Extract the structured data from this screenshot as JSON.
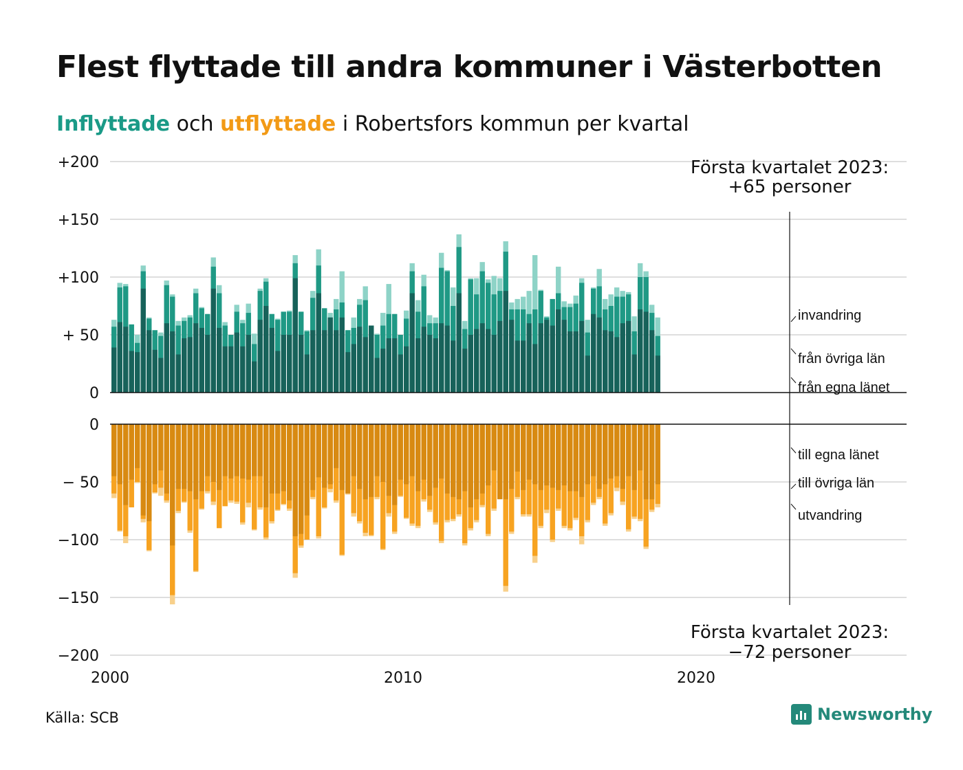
{
  "title": "Flest flyttade till andra kommuner i Västerbotten",
  "subtitle": {
    "in_word": "Inflyttade",
    "connector": "och",
    "out_word": "utflyttade",
    "rest": "i Robertsfors kommun per kvartal"
  },
  "source": "Källa: SCB",
  "brand": "Newsworthy",
  "colors": {
    "in_own": "#17625a",
    "in_other": "#1f9985",
    "in_immig": "#8ed3c7",
    "out_own": "#d88a12",
    "out_other": "#f7a321",
    "out_emig": "#f8d08b"
  },
  "chart_data": {
    "type": "bar",
    "x_ticks": [
      "2000",
      "2010",
      "2020"
    ],
    "upper_y_ticks": [
      "+200",
      "+150",
      "+100",
      "+ 50",
      "0"
    ],
    "lower_y_ticks": [
      "0",
      "− 50",
      "−100",
      "−150",
      "−200"
    ],
    "upper_ylim": [
      0,
      200
    ],
    "lower_ylim": [
      -200,
      0
    ],
    "annotation_top": [
      "Första kvartalet 2023:",
      "+65 personer"
    ],
    "annotation_bottom": [
      "Första kvartalet 2023:",
      "−72 personer"
    ],
    "labels_in": [
      "invandring",
      "från övriga län",
      "från egna länet"
    ],
    "labels_out": [
      "till egna länet",
      "till övriga län",
      "utvandring"
    ],
    "series_in": [
      {
        "name": "från egna länet",
        "values": [
          39,
          61,
          57,
          36,
          35,
          90,
          54,
          37,
          30,
          60,
          53,
          33,
          47,
          48,
          60,
          56,
          50,
          90,
          56,
          40,
          40,
          52,
          40,
          50,
          27,
          63,
          75,
          56,
          36,
          50,
          50,
          99,
          50,
          33,
          54,
          86,
          54,
          65,
          54,
          65,
          35,
          42,
          57,
          48,
          58,
          30,
          38,
          47,
          47,
          33,
          40,
          86,
          47,
          57,
          50,
          47,
          60,
          58,
          45,
          86,
          38,
          50,
          55,
          60,
          55,
          50,
          62,
          88,
          63,
          45,
          45,
          60,
          42,
          60,
          63,
          58,
          72,
          63,
          53,
          53,
          62,
          32,
          68,
          65,
          54,
          53,
          48,
          60,
          62,
          33,
          72,
          70,
          54,
          32
        ]
      },
      {
        "name": "från övriga län",
        "values": [
          57,
          91,
          92,
          59,
          43,
          105,
          64,
          54,
          49,
          93,
          83,
          58,
          62,
          65,
          86,
          73,
          68,
          109,
          86,
          58,
          50,
          70,
          60,
          69,
          42,
          88,
          96,
          68,
          63,
          70,
          70,
          112,
          70,
          53,
          82,
          110,
          73,
          65,
          72,
          78,
          54,
          56,
          76,
          80,
          58,
          50,
          58,
          68,
          68,
          50,
          64,
          105,
          70,
          92,
          60,
          60,
          108,
          105,
          75,
          126,
          55,
          98,
          85,
          105,
          95,
          85,
          88,
          122,
          72,
          72,
          72,
          68,
          72,
          88,
          65,
          81,
          86,
          74,
          74,
          77,
          95,
          52,
          90,
          92,
          72,
          75,
          83,
          83,
          85,
          53,
          100,
          100,
          69,
          49
        ]
      },
      {
        "name": "invandring",
        "values": [
          63,
          95,
          94,
          59,
          50,
          110,
          65,
          54,
          52,
          97,
          85,
          62,
          65,
          67,
          90,
          74,
          68,
          117,
          93,
          61,
          50,
          76,
          63,
          77,
          51,
          90,
          99,
          68,
          64,
          70,
          71,
          119,
          70,
          54,
          88,
          124,
          73,
          69,
          81,
          105,
          54,
          65,
          81,
          92,
          58,
          51,
          69,
          94,
          68,
          44,
          71,
          112,
          80,
          102,
          67,
          65,
          121,
          106,
          91,
          137,
          62,
          99,
          99,
          113,
          98,
          101,
          99,
          131,
          78,
          81,
          83,
          88,
          119,
          89,
          66,
          81,
          109,
          79,
          77,
          84,
          99,
          63,
          91,
          107,
          81,
          85,
          91,
          88,
          87,
          66,
          112,
          105,
          76,
          65
        ]
      }
    ],
    "series_out": [
      {
        "name": "till egna länet",
        "values": [
          -45,
          -52,
          -70,
          -48,
          -38,
          -79,
          -84,
          -52,
          -40,
          -60,
          -105,
          -56,
          -56,
          -58,
          -65,
          -58,
          -45,
          -50,
          -57,
          -45,
          -47,
          -45,
          -47,
          -48,
          -45,
          -45,
          -72,
          -60,
          -60,
          -58,
          -66,
          -97,
          -95,
          -79,
          -57,
          -46,
          -55,
          -52,
          -38,
          -57,
          -60,
          -45,
          -56,
          -65,
          -63,
          -45,
          -50,
          -62,
          -70,
          -48,
          -52,
          -45,
          -58,
          -48,
          -62,
          -55,
          -47,
          -60,
          -63,
          -65,
          -58,
          -72,
          -65,
          -60,
          -53,
          -40,
          -65,
          -65,
          -56,
          -41,
          -57,
          -48,
          -52,
          -57,
          -53,
          -55,
          -57,
          -53,
          -58,
          -58,
          -63,
          -52,
          -45,
          -56,
          -52,
          -47,
          -45,
          -56,
          -45,
          -57,
          -40,
          -65,
          -65,
          -52
        ]
      },
      {
        "name": "till övriga län",
        "values": [
          -60,
          -92,
          -97,
          -72,
          -50,
          -82,
          -109,
          -59,
          -55,
          -66,
          -148,
          -75,
          -67,
          -92,
          -127,
          -73,
          -58,
          -67,
          -90,
          -71,
          -66,
          -67,
          -85,
          -68,
          -91,
          -72,
          -98,
          -84,
          -74,
          -69,
          -73,
          -129,
          -105,
          -100,
          -63,
          -97,
          -72,
          -56,
          -66,
          -113,
          -58,
          -77,
          -84,
          -94,
          -96,
          -63,
          -108,
          -77,
          -93,
          -62,
          -81,
          -86,
          -88,
          -65,
          -74,
          -85,
          -101,
          -83,
          -82,
          -78,
          -103,
          -90,
          -83,
          -70,
          -95,
          -73,
          -62,
          -140,
          -93,
          -63,
          -78,
          -78,
          -114,
          -88,
          -74,
          -100,
          -73,
          -88,
          -90,
          -81,
          -97,
          -83,
          -68,
          -63,
          -86,
          -77,
          -55,
          -67,
          -91,
          -80,
          -82,
          -106,
          -74,
          -69
        ]
      },
      {
        "name": "utvandring",
        "values": [
          -64,
          -93,
          -103,
          -72,
          -51,
          -85,
          -110,
          -60,
          -62,
          -68,
          -156,
          -77,
          -68,
          -94,
          -128,
          -74,
          -60,
          -70,
          -90,
          -71,
          -68,
          -69,
          -87,
          -72,
          -92,
          -74,
          -100,
          -86,
          -75,
          -70,
          -75,
          -133,
          -107,
          -100,
          -65,
          -99,
          -73,
          -59,
          -68,
          -114,
          -61,
          -80,
          -86,
          -97,
          -97,
          -65,
          -109,
          -80,
          -95,
          -63,
          -82,
          -88,
          -90,
          -67,
          -76,
          -87,
          -103,
          -85,
          -84,
          -80,
          -105,
          -92,
          -85,
          -72,
          -97,
          -75,
          -64,
          -145,
          -95,
          -65,
          -80,
          -80,
          -120,
          -90,
          -77,
          -102,
          -75,
          -90,
          -92,
          -83,
          -104,
          -85,
          -70,
          -65,
          -88,
          -79,
          -58,
          -70,
          -93,
          -82,
          -84,
          -108,
          -76,
          -72
        ]
      }
    ]
  }
}
